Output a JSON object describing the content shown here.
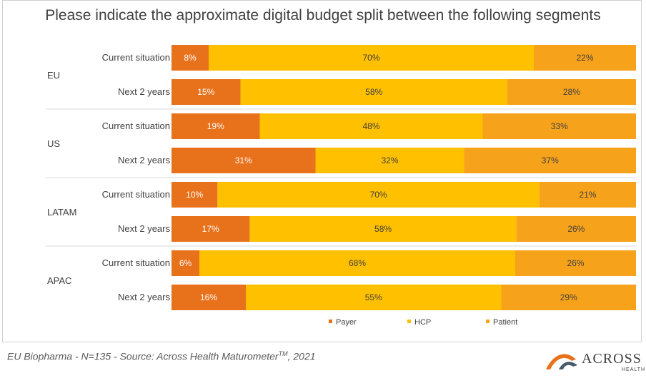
{
  "title": "Please indicate the approximate digital budget split between the following segments",
  "footer": {
    "text_before": "EU Biopharma - N=135  -  Source: Across Health Maturometer",
    "superscript": "TM",
    "text_after": ", 2021"
  },
  "logo": {
    "word": "ACROSS",
    "sub": "HEALTH"
  },
  "colors": {
    "Payer": "#e8711c",
    "HCP": "#ffc000",
    "Patient": "#f7a21b",
    "separator": "#d9d9d9"
  },
  "chart_data": {
    "type": "bar",
    "orientation": "horizontal",
    "stacked": true,
    "percent_stacked": true,
    "legend_position": "bottom",
    "groups": [
      {
        "label": "EU",
        "rows": [
          {
            "label": "Current situation",
            "values": [
              8,
              70,
              22
            ]
          },
          {
            "label": "Next 2 years",
            "values": [
              15,
              58,
              28
            ]
          }
        ]
      },
      {
        "label": "US",
        "rows": [
          {
            "label": "Current situation",
            "values": [
              19,
              48,
              33
            ]
          },
          {
            "label": "Next 2 years",
            "values": [
              31,
              32,
              37
            ]
          }
        ]
      },
      {
        "label": "LATAM",
        "rows": [
          {
            "label": "Current situation",
            "values": [
              10,
              70,
              21
            ]
          },
          {
            "label": "Next 2 years",
            "values": [
              17,
              58,
              26
            ]
          }
        ]
      },
      {
        "label": "APAC",
        "rows": [
          {
            "label": "Current situation",
            "values": [
              6,
              68,
              26
            ]
          },
          {
            "label": "Next 2 years",
            "values": [
              16,
              55,
              29
            ]
          }
        ]
      }
    ],
    "series": [
      {
        "name": "Payer"
      },
      {
        "name": "HCP"
      },
      {
        "name": "Patient"
      }
    ]
  }
}
